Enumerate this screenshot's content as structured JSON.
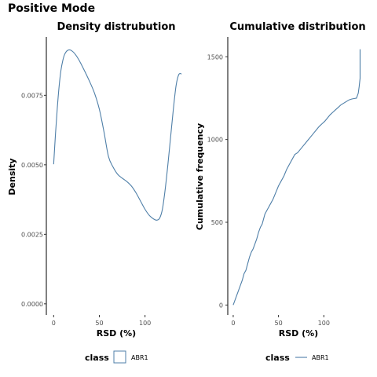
{
  "title": "Positive Mode",
  "chart_data": [
    {
      "type": "line",
      "title": "Density distrubution",
      "xlabel": "RSD (%)",
      "ylabel": "Density",
      "xlim": [
        -8,
        145
      ],
      "ylim": [
        -0.0004,
        0.0096
      ],
      "xticks": [
        0,
        50,
        100
      ],
      "xtick_labels": [
        "0",
        "50",
        "100"
      ],
      "yticks": [
        0.0,
        0.0025,
        0.005,
        0.0075
      ],
      "ytick_labels": [
        "0.0000",
        "0.0025",
        "0.0050",
        "0.0075"
      ],
      "grid": false,
      "series": [
        {
          "name": "ABR1",
          "x": [
            0,
            2,
            4,
            6,
            8,
            10,
            12,
            15,
            18,
            21,
            24,
            27,
            30,
            35,
            40,
            45,
            50,
            55,
            60,
            65,
            70,
            75,
            80,
            85,
            90,
            95,
            100,
            105,
            110,
            113,
            116,
            119,
            122,
            125,
            128,
            131,
            134,
            137,
            140
          ],
          "y": [
            0.00502,
            0.0061,
            0.00705,
            0.00783,
            0.0084,
            0.00875,
            0.00897,
            0.00911,
            0.00913,
            0.00907,
            0.00896,
            0.00881,
            0.00863,
            0.0083,
            0.00795,
            0.00755,
            0.007,
            0.0062,
            0.0053,
            0.00492,
            0.00466,
            0.00452,
            0.0044,
            0.00424,
            0.004,
            0.0037,
            0.0034,
            0.00317,
            0.00304,
            0.00301,
            0.00308,
            0.0034,
            0.0041,
            0.005,
            0.006,
            0.007,
            0.00785,
            0.00825,
            0.00827
          ]
        }
      ],
      "color": "#4f7fa8"
    },
    {
      "type": "line",
      "title": "Cumulative distribution",
      "xlabel": "RSD (%)",
      "ylabel": "Cumulative frequency",
      "xlim": [
        -6,
        150
      ],
      "ylim": [
        -60,
        1620
      ],
      "xticks": [
        0,
        50,
        100
      ],
      "xtick_labels": [
        "0",
        "50",
        "100"
      ],
      "yticks": [
        0,
        500,
        1000,
        1500
      ],
      "ytick_labels": [
        "0",
        "500",
        "1000",
        "1500"
      ],
      "grid": false,
      "series": [
        {
          "name": "ABR1",
          "x": [
            0,
            2,
            4,
            6,
            8,
            10,
            12,
            14,
            16,
            18,
            20,
            22,
            24,
            26,
            28,
            30,
            32,
            35,
            38,
            41,
            44,
            47,
            50,
            53,
            56,
            59,
            62,
            65,
            68,
            71,
            74,
            77,
            80,
            83,
            86,
            89,
            92,
            95,
            98,
            101,
            104,
            107,
            110,
            113,
            116,
            119,
            122,
            125,
            128,
            131,
            134,
            136,
            138,
            139,
            140,
            140,
            140,
            140
          ],
          "y": [
            0,
            30,
            60,
            90,
            120,
            150,
            190,
            210,
            250,
            290,
            320,
            340,
            370,
            400,
            440,
            470,
            490,
            550,
            580,
            610,
            640,
            680,
            720,
            750,
            780,
            820,
            850,
            880,
            910,
            920,
            940,
            960,
            980,
            1000,
            1020,
            1040,
            1060,
            1080,
            1095,
            1110,
            1130,
            1150,
            1165,
            1180,
            1195,
            1210,
            1220,
            1230,
            1240,
            1245,
            1248,
            1250,
            1280,
            1320,
            1370,
            1420,
            1480,
            1545
          ]
        }
      ],
      "color": "#4f7fa8"
    }
  ],
  "legend": {
    "title": "class",
    "items": [
      "ABR1"
    ]
  }
}
